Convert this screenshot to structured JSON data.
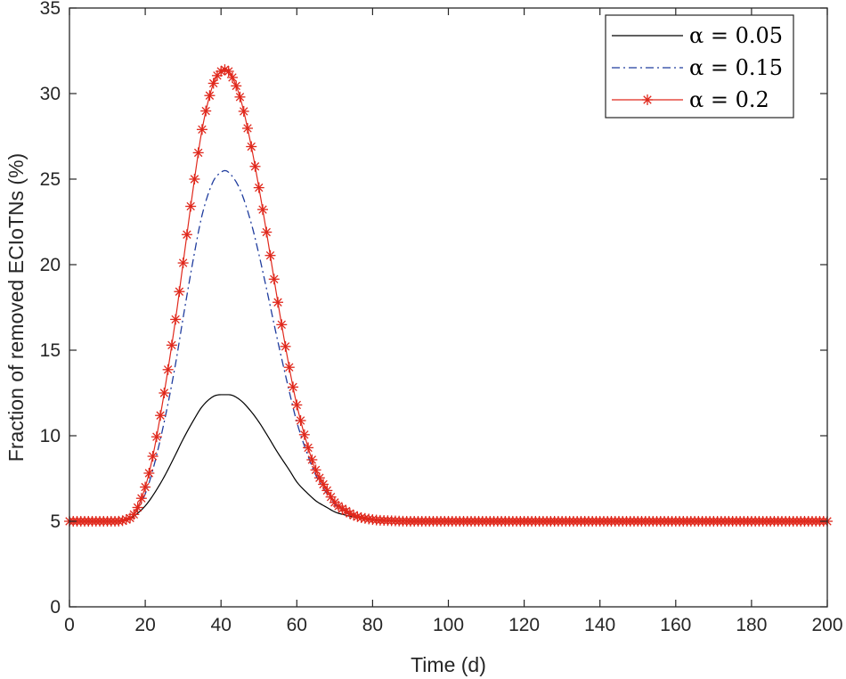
{
  "chart_data": {
    "type": "line",
    "title": "",
    "xlabel": "Time (d)",
    "ylabel": "Fraction of removed ECIoTNs (%)",
    "xlim": [
      0,
      200
    ],
    "ylim": [
      0,
      35
    ],
    "xticks": [
      "0",
      "20",
      "40",
      "60",
      "80",
      "100",
      "120",
      "140",
      "160",
      "180",
      "200"
    ],
    "yticks": [
      "0",
      "5",
      "10",
      "15",
      "20",
      "25",
      "30",
      "35"
    ],
    "grid": false,
    "legend_position": "top-right",
    "x": [
      0,
      5,
      10,
      12,
      15,
      17,
      20,
      22,
      25,
      28,
      30,
      33,
      35,
      38,
      40,
      41,
      42,
      45,
      48,
      50,
      52,
      55,
      58,
      60,
      63,
      65,
      68,
      70,
      73,
      75,
      80,
      85,
      90,
      100,
      120,
      140,
      160,
      180,
      200
    ],
    "series": [
      {
        "name": "α = 0.05",
        "color": "#000000",
        "dash": "solid",
        "marker": "none",
        "values": [
          5.0,
          5.0,
          5.0,
          5.0,
          5.1,
          5.3,
          5.9,
          6.5,
          7.6,
          8.9,
          9.8,
          11.0,
          11.7,
          12.3,
          12.4,
          12.4,
          12.4,
          12.1,
          11.4,
          10.8,
          10.1,
          9.0,
          8.0,
          7.3,
          6.6,
          6.2,
          5.8,
          5.55,
          5.35,
          5.25,
          5.1,
          5.03,
          5.0,
          5.0,
          5.0,
          5.0,
          5.0,
          5.0,
          5.0
        ]
      },
      {
        "name": "α = 0.15",
        "color": "#1f3c9e",
        "dash": "dashdot",
        "marker": "none",
        "values": [
          5.0,
          5.0,
          5.0,
          5.0,
          5.1,
          5.4,
          6.6,
          8.0,
          10.8,
          14.2,
          16.9,
          20.7,
          22.9,
          24.9,
          25.4,
          25.5,
          25.4,
          24.4,
          22.4,
          20.6,
          18.6,
          15.5,
          12.6,
          10.8,
          8.8,
          7.7,
          6.6,
          6.0,
          5.5,
          5.3,
          5.1,
          5.03,
          5.0,
          5.0,
          5.0,
          5.0,
          5.0,
          5.0,
          5.0
        ]
      },
      {
        "name": "α = 0.2",
        "color": "#e0281c",
        "dash": "solid",
        "marker": "asterisk",
        "values": [
          5.0,
          5.0,
          5.0,
          5.0,
          5.1,
          5.4,
          7.0,
          8.8,
          12.5,
          16.8,
          20.1,
          25.0,
          27.9,
          30.6,
          31.3,
          31.4,
          31.3,
          29.8,
          26.9,
          24.5,
          21.9,
          17.8,
          14.0,
          11.8,
          9.3,
          8.0,
          6.8,
          6.1,
          5.6,
          5.35,
          5.1,
          5.03,
          5.0,
          5.0,
          5.0,
          5.0,
          5.0,
          5.0,
          5.0
        ]
      }
    ]
  }
}
